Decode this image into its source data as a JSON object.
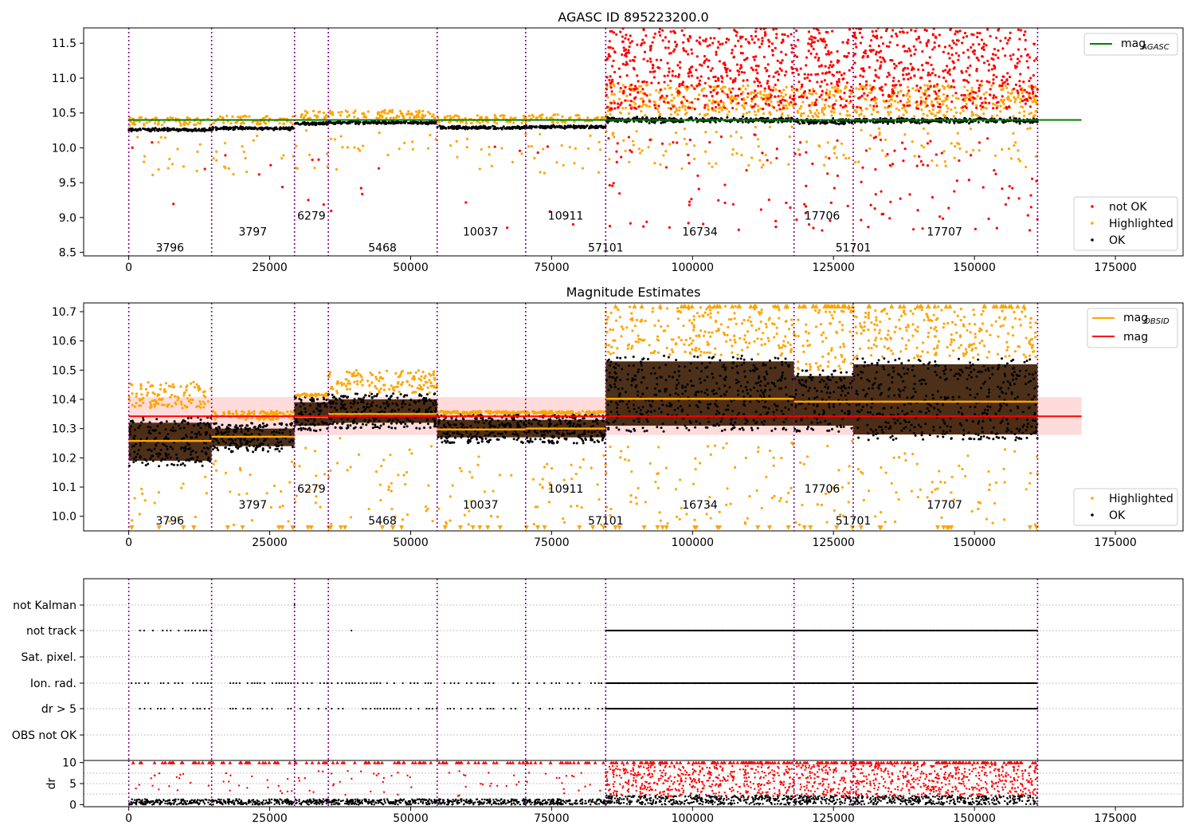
{
  "chart_data": [
    {
      "type": "scatter",
      "title": "AGASC ID 895223200.0",
      "xlim": [
        -8000,
        187000
      ],
      "ylim": [
        8.45,
        11.72
      ],
      "xticks": [
        0,
        25000,
        50000,
        75000,
        100000,
        125000,
        150000,
        175000
      ],
      "xtick_labels": [
        "0",
        "25000",
        "50000",
        "75000",
        "100000",
        "125000",
        "150000",
        "175000"
      ],
      "yticks": [
        8.5,
        9.0,
        9.5,
        10.0,
        10.5,
        11.0,
        11.5
      ],
      "ytick_labels": [
        "8.5",
        "9.0",
        "9.5",
        "10.0",
        "10.5",
        "11.0",
        "11.5"
      ],
      "obs_boundaries": [
        0,
        14700,
        29400,
        35400,
        54700,
        70400,
        84600,
        118000,
        128500,
        161200
      ],
      "obsids": [
        {
          "label": "3796",
          "x": 7300,
          "y": 8.57
        },
        {
          "label": "3797",
          "x": 22000,
          "y": 8.8
        },
        {
          "label": "6279",
          "x": 32400,
          "y": 9.03
        },
        {
          "label": "5468",
          "x": 45000,
          "y": 8.57
        },
        {
          "label": "10037",
          "x": 62400,
          "y": 8.8
        },
        {
          "label": "10911",
          "x": 77500,
          "y": 9.03
        },
        {
          "label": "57101",
          "x": 84600,
          "y": 8.57
        },
        {
          "label": "16734",
          "x": 101300,
          "y": 8.8
        },
        {
          "label": "17706",
          "x": 123000,
          "y": 9.03
        },
        {
          "label": "51701",
          "x": 128500,
          "y": 8.57
        },
        {
          "label": "17707",
          "x": 144700,
          "y": 8.8
        }
      ],
      "reference_line": {
        "name": "mag_AGASC",
        "y": 10.4,
        "x_range": [
          0,
          169000
        ],
        "color": "#008000"
      },
      "band_levels": [
        {
          "x0": 0,
          "x1": 14700,
          "y": 10.26
        },
        {
          "x0": 14700,
          "x1": 29400,
          "y": 10.28
        },
        {
          "x0": 29400,
          "x1": 35400,
          "y": 10.35
        },
        {
          "x0": 35400,
          "x1": 54700,
          "y": 10.36
        },
        {
          "x0": 54700,
          "x1": 70400,
          "y": 10.29
        },
        {
          "x0": 70400,
          "x1": 84600,
          "y": 10.3
        },
        {
          "x0": 84600,
          "x1": 118000,
          "y": 10.4
        },
        {
          "x0": 118000,
          "x1": 128500,
          "y": 10.38
        },
        {
          "x0": 128500,
          "x1": 161200,
          "y": 10.39
        }
      ],
      "legend": [
        "mag_AGASC",
        "not OK",
        "Highlighted",
        "OK"
      ],
      "series_colors": {
        "ok": "#000000",
        "highlighted": "#ffa500",
        "not_ok": "#ff0000"
      }
    },
    {
      "type": "scatter",
      "title": "Magnitude Estimates",
      "xlim": [
        -8000,
        187000
      ],
      "ylim": [
        9.95,
        10.73
      ],
      "xticks": [
        0,
        25000,
        50000,
        75000,
        100000,
        125000,
        150000,
        175000
      ],
      "xtick_labels": [
        "0",
        "25000",
        "50000",
        "75000",
        "100000",
        "125000",
        "150000",
        "175000"
      ],
      "yticks": [
        10.0,
        10.1,
        10.2,
        10.3,
        10.4,
        10.5,
        10.6,
        10.7
      ],
      "ytick_labels": [
        "10.0",
        "10.1",
        "10.2",
        "10.3",
        "10.4",
        "10.5",
        "10.6",
        "10.7"
      ],
      "obsids": [
        {
          "label": "3796",
          "x": 7300,
          "y": 9.985
        },
        {
          "label": "3797",
          "x": 22000,
          "y": 10.04
        },
        {
          "label": "6279",
          "x": 32400,
          "y": 10.095
        },
        {
          "label": "5468",
          "x": 45000,
          "y": 9.985
        },
        {
          "label": "10037",
          "x": 62400,
          "y": 10.04
        },
        {
          "label": "10911",
          "x": 77500,
          "y": 10.095
        },
        {
          "label": "57101",
          "x": 84600,
          "y": 9.985
        },
        {
          "label": "16734",
          "x": 101300,
          "y": 10.04
        },
        {
          "label": "17706",
          "x": 123000,
          "y": 10.095
        },
        {
          "label": "51701",
          "x": 128500,
          "y": 9.985
        },
        {
          "label": "17707",
          "x": 144700,
          "y": 10.04
        }
      ],
      "mag_line": {
        "name": "mag",
        "y": 10.342,
        "band": [
          10.278,
          10.408
        ],
        "x_range": [
          0,
          169000
        ],
        "color": "#ff0000"
      },
      "obs_mags": [
        {
          "x0": 0,
          "x1": 14700,
          "mag": 10.258,
          "lo": 10.17,
          "hi": 10.34,
          "hl_lo": 10.37,
          "hl_hi": 10.46
        },
        {
          "x0": 14700,
          "x1": 29400,
          "mag": 10.272,
          "lo": 10.22,
          "hi": 10.32,
          "hl_lo": 10.33,
          "hl_hi": 10.36
        },
        {
          "x0": 29400,
          "x1": 35400,
          "mag": 10.34,
          "lo": 10.29,
          "hi": 10.41,
          "hl_lo": 10.41,
          "hl_hi": 10.42
        },
        {
          "x0": 35400,
          "x1": 54700,
          "mag": 10.35,
          "lo": 10.3,
          "hi": 10.42,
          "hl_lo": 10.42,
          "hl_hi": 10.5
        },
        {
          "x0": 54700,
          "x1": 70400,
          "mag": 10.297,
          "lo": 10.25,
          "hi": 10.35,
          "hl_lo": 10.35,
          "hl_hi": 10.36
        },
        {
          "x0": 70400,
          "x1": 84600,
          "mag": 10.3,
          "lo": 10.25,
          "hi": 10.35,
          "hl_lo": 10.35,
          "hl_hi": 10.36
        },
        {
          "x0": 84600,
          "x1": 118000,
          "mag": 10.402,
          "lo": 10.29,
          "hi": 10.55,
          "hl_lo": 10.55,
          "hl_hi": 10.72
        },
        {
          "x0": 118000,
          "x1": 128500,
          "mag": 10.392,
          "lo": 10.29,
          "hi": 10.5,
          "hl_lo": 10.5,
          "hl_hi": 10.72
        },
        {
          "x0": 128500,
          "x1": 161200,
          "mag": 10.392,
          "lo": 10.26,
          "hi": 10.54,
          "hl_lo": 10.54,
          "hl_hi": 10.72
        }
      ],
      "legend": [
        "mag_OBSID",
        "mag",
        "Highlighted",
        "OK"
      ],
      "series_colors": {
        "ok": "#000000",
        "highlighted": "#ffa500",
        "mag_obsid": "#ffa500"
      }
    },
    {
      "type": "scatter",
      "title": "",
      "xlim": [
        -8000,
        187000
      ],
      "categories": [
        "not Kalman",
        "not track",
        "Sat. pixel.",
        "Ion. rad.",
        "dr > 5",
        "OBS not OK"
      ],
      "category_flags": {
        "not Kalman": [
          [
            35000,
            35600
          ],
          [
            29400,
            29500
          ]
        ],
        "not track": [
          [
            2000,
            14700
          ],
          [
            39500,
            39700
          ],
          [
            68500,
            68700
          ],
          [
            84600,
            118000
          ],
          [
            118000,
            161200
          ]
        ],
        "Sat. pixel.": [],
        "Ion. rad.": [
          [
            500,
            14700
          ],
          [
            18000,
            29400
          ],
          [
            29400,
            35400
          ],
          [
            36000,
            54700
          ],
          [
            56000,
            70400
          ],
          [
            71000,
            84600
          ],
          [
            84600,
            161200
          ]
        ],
        "dr > 5": [
          [
            500,
            14700
          ],
          [
            18000,
            29400
          ],
          [
            29400,
            35400
          ],
          [
            36000,
            54700
          ],
          [
            56000,
            70400
          ],
          [
            71000,
            84600
          ],
          [
            84600,
            161200
          ]
        ],
        "OBS not OK": []
      }
    },
    {
      "type": "scatter",
      "title": "",
      "ylabel": "dr",
      "xlim": [
        -8000,
        187000
      ],
      "ylim": [
        -0.5,
        10.5
      ],
      "xticks": [
        0,
        25000,
        50000,
        75000,
        100000,
        125000,
        150000,
        175000
      ],
      "xtick_labels": [
        "0",
        "25000",
        "50000",
        "75000",
        "100000",
        "125000",
        "150000",
        "175000"
      ],
      "yticks": [
        0,
        5,
        10
      ],
      "ytick_labels": [
        "0",
        "5",
        "10"
      ],
      "ok_range": [
        0,
        2
      ],
      "not_ok_range": [
        2,
        10
      ]
    }
  ],
  "legend_labels": {
    "mag_agasc_main": "mag",
    "mag_agasc_sub": "AGASC",
    "not_ok": "not OK",
    "highlighted": "Highlighted",
    "ok": "OK",
    "mag_obsid_main": "mag",
    "mag_obsid_sub": "OBSID",
    "mag": "mag"
  }
}
